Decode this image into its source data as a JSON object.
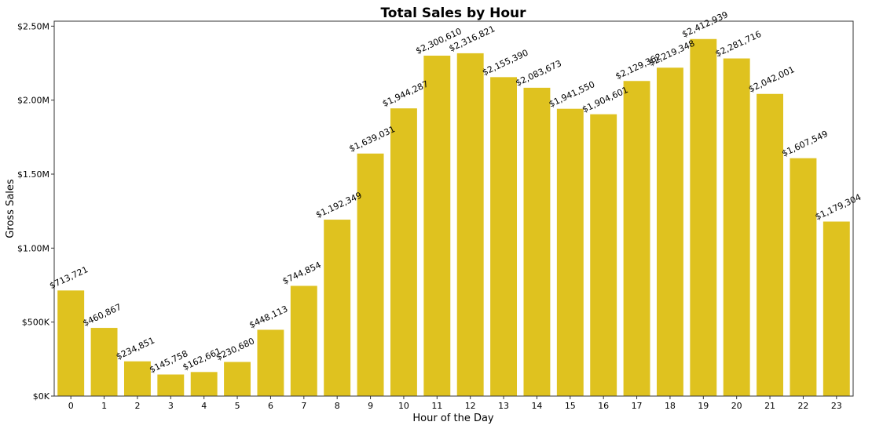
{
  "chart_data": {
    "type": "bar",
    "title": "Total Sales by Hour",
    "xlabel": "Hour of the Day",
    "ylabel": "Gross Sales",
    "categories": [
      "0",
      "1",
      "2",
      "3",
      "4",
      "5",
      "6",
      "7",
      "8",
      "9",
      "10",
      "11",
      "12",
      "13",
      "14",
      "15",
      "16",
      "17",
      "18",
      "19",
      "20",
      "21",
      "22",
      "23"
    ],
    "values": [
      713721,
      460867,
      234851,
      145758,
      162661,
      230680,
      448113,
      744854,
      1192349,
      1639031,
      1944287,
      2300610,
      2316821,
      2155390,
      2083673,
      1941550,
      1904601,
      2129362,
      2219348,
      2412939,
      2281716,
      2042001,
      1607549,
      1179304
    ],
    "data_labels": [
      "$713,721",
      "$460,867",
      "$234,851",
      "$145,758",
      "$162,661",
      "$230,680",
      "$448,113",
      "$744,854",
      "$1,192,349",
      "$1,639,031",
      "$1,944,287",
      "$2,300,610",
      "$2,316,821",
      "$2,155,390",
      "$2,083,673",
      "$1,941,550",
      "$1,904,601",
      "$2,129,362",
      "$2,219,348",
      "$2,412,939",
      "$2,281,716",
      "$2,042,001",
      "$1,607,549",
      "$1,179,304"
    ],
    "yticks": [
      0,
      500000,
      1000000,
      1500000,
      2000000,
      2500000
    ],
    "ytick_labels": [
      "$0K",
      "$500K",
      "$1.00M",
      "$1.50M",
      "$2.00M",
      "$2.50M"
    ],
    "ylim": [
      0,
      2533586
    ],
    "grid": false,
    "bar_color": "#DFC21F",
    "axis_color": "#333333"
  }
}
